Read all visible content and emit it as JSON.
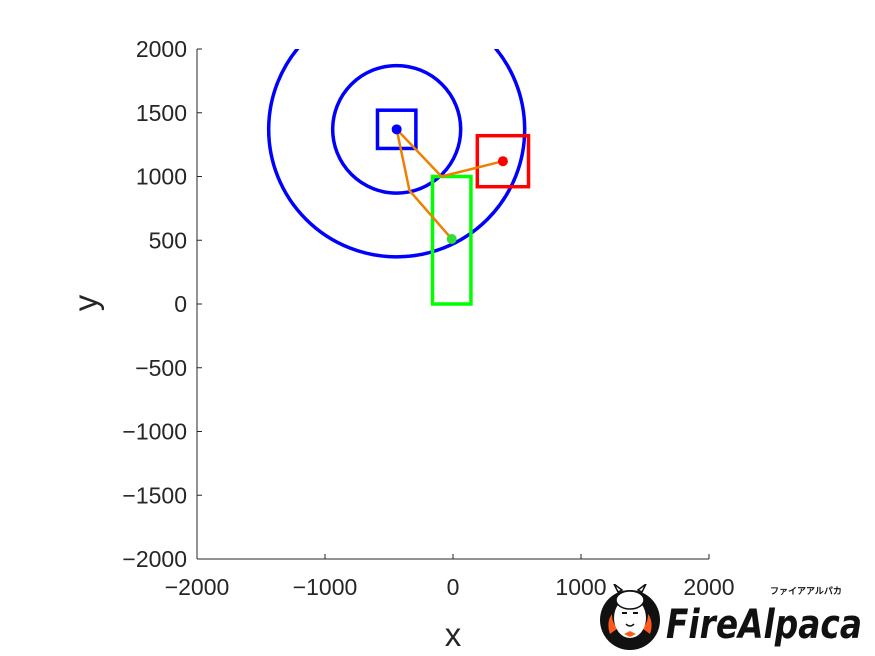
{
  "chart_data": {
    "type": "scatter",
    "title": "",
    "xlabel": "x",
    "ylabel": "y",
    "xlim": [
      -2000,
      2000
    ],
    "ylim": [
      -2000,
      2000
    ],
    "xticks": [
      -2000,
      -1000,
      0,
      1000,
      2000
    ],
    "yticks": [
      -2000,
      -1500,
      -1000,
      -500,
      0,
      500,
      1000,
      1500,
      2000
    ],
    "xtick_labels": [
      "−2000",
      "−1000",
      "0",
      "1000",
      "2000"
    ],
    "ytick_labels": [
      "−2000",
      "−1500",
      "−1000",
      "−500",
      "0",
      "500",
      "1000",
      "1500",
      "2000"
    ],
    "grid": false,
    "legend": "none",
    "circles": [
      {
        "name": "inner-circle",
        "cx": -440,
        "cy": 1370,
        "r": 500,
        "color": "#0000ff"
      },
      {
        "name": "outer-arc",
        "cx": -440,
        "cy": 1370,
        "r": 1000,
        "color": "#0000ff",
        "clipped_to_axes": true
      }
    ],
    "rectangles": [
      {
        "name": "blue-square",
        "x0": -590,
        "y0": 1220,
        "x1": -290,
        "y1": 1520,
        "color": "#0000ff"
      },
      {
        "name": "red-square",
        "x0": 190,
        "y0": 920,
        "x1": 590,
        "y1": 1320,
        "color": "#ff0000"
      },
      {
        "name": "green-rectangle",
        "x0": -160,
        "y0": 0,
        "x1": 140,
        "y1": 1000,
        "color": "#00ff00"
      }
    ],
    "points": [
      {
        "name": "blue-point",
        "x": -440,
        "y": 1370,
        "color": "#0000ff"
      },
      {
        "name": "red-point",
        "x": 390,
        "y": 1120,
        "color": "#ff0000"
      },
      {
        "name": "green-point",
        "x": -10,
        "y": 510,
        "color": "#33dd33"
      }
    ],
    "polyline": {
      "color": "#ee7f00",
      "x": [
        390,
        -90,
        -440,
        -340,
        -10
      ],
      "y": [
        1120,
        1000,
        1370,
        890,
        510
      ]
    }
  },
  "watermark": {
    "text": "FireAlpaca",
    "kana": "ファイアアルパカ",
    "colors": {
      "flame": "#ff5a1a",
      "text": "#111111"
    }
  }
}
